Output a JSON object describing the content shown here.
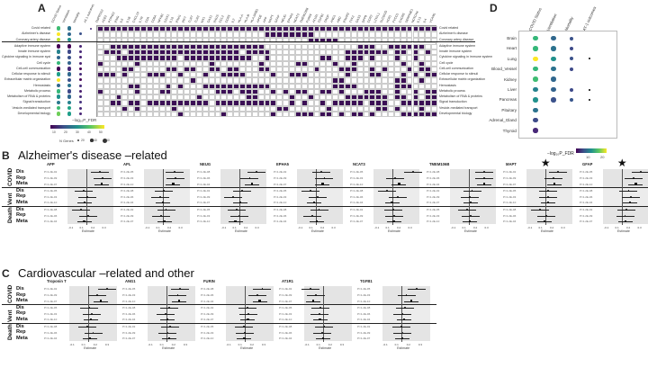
{
  "panelA": {
    "letter": "A",
    "dot_columns": [
      "COVID Status",
      "Ventilation",
      "Mortality",
      "AT-1 outcomes"
    ],
    "gene_columns": [
      "TMPRSS2",
      "ACE2",
      "PTPN22",
      "IFNG",
      "IL6",
      "IL1B",
      "CXCL10",
      "IL7R",
      "CD4",
      "CD8A",
      "NFKB1",
      "STAT1",
      "IL10",
      "IFNA1",
      "IRF7",
      "TLR7",
      "TLR3",
      "MX1",
      "OAS1",
      "ISG15",
      "CCL2",
      "CCR5",
      "IL2",
      "HLA-A",
      "HLA-B",
      "HLA-DRB1",
      "APOE",
      "APP",
      "MAPT",
      "GFAP",
      "NEUG",
      "EPHA5",
      "NCAT3",
      "TMEM106B",
      "FURIN",
      "AT1R1",
      "TGFB1",
      "TROP",
      "ANG1",
      "ABO",
      "IFNAR2",
      "TYK2",
      "OAS3",
      "DPP9",
      "CCR2",
      "LZTFL1",
      "SLC6A20",
      "XCR1",
      "FYCO1",
      "CXCR6",
      "SERPINE1",
      "NOTCH4",
      "IL13",
      "IL4",
      "VCAM1"
    ],
    "rows": [
      "Covid related",
      "Alzheimer's disease",
      "Coronary artery disease",
      "Adaptive immune system",
      "Innate immune system",
      "Cytokine signaling in immune system",
      "Cell cycle",
      "Cell-cell communication",
      "Cellular response to stimuli",
      "Extracellular matrix organization",
      "Hemostasis",
      "Metabolic process",
      "Metabolism of RNA & proteins",
      "Signal transduction",
      "Vesicle-mediated transport",
      "Developmental biology"
    ],
    "grid_pattern": [
      "1111111111111111111111111111111111111111111111111111111",
      "0000000000000000000000000001111111100000000000000000000",
      "0000000000000000000000000000000000111110000000000000000",
      "0011111111111111111111111110000000000000001110011111100",
      "0111011111111111111111101111000000000000111111101101010",
      "0001111111111011111111111001000000001100111010001001000",
      "1000001000000000001000000010000011000010010000000100100",
      "0000110000011011001101100011000000010001110010100010110",
      "1110100011100100010011110000100111000000100011000101011",
      "0000000000000001000000000000000000000011000000001100100",
      "0000011000010100011111111111000000000011110000001110000",
      "1000001000110000000111011100101011001101000111001001011",
      "0001000000000000100000001100000100100000111111101101011",
      "0011011011111111110111111111100101001011111011100111111",
      "0000101000001000000000000000011000000100000001101000100",
      "0000000000000100000010000000100011101101011010000111111"
    ],
    "dot_colors": [
      [
        "#3fbc73",
        "#2c728e",
        "",
        "#472c7a"
      ],
      [
        "#fde725",
        "#31688e",
        "#3b528b",
        ""
      ],
      [
        "#b5de2b",
        "#21918c",
        "",
        ""
      ],
      [
        "#440154",
        "#440154",
        "#482475",
        ""
      ],
      [
        "#26828e",
        "#3e4a89",
        "#482878",
        ""
      ],
      [
        "#31688e",
        "#3b528b",
        "#482173",
        ""
      ],
      [
        "#35b779",
        "#33638d",
        "#481f70",
        ""
      ],
      [
        "#440154",
        "#482878",
        "#440154",
        ""
      ],
      [
        "#1f9e89",
        "#31688e",
        "#472d7b",
        ""
      ],
      [
        "#fde725",
        "#3b528b",
        "#440154",
        ""
      ],
      [
        "#31688e",
        "#2c728e",
        "#472c7a",
        ""
      ],
      [
        "#35b779",
        "#3e4a89",
        "#481c6e",
        ""
      ],
      [
        "#21918c",
        "#31688e",
        "#472d7b",
        ""
      ],
      [
        "#2a788e",
        "#26828e",
        "#46327e",
        ""
      ],
      [
        "#3fbc73",
        "#20a486",
        "#472878",
        ""
      ],
      [
        "#6ece58",
        "#1f9e89",
        "#482475",
        ""
      ]
    ],
    "colorbar_title": "−log₁₀P_FDR",
    "colorbar_ticks": [
      "10",
      "20",
      "30",
      "40",
      "50"
    ],
    "size_title": "N Genes",
    "size_ticks": [
      "20",
      "40",
      "60"
    ]
  },
  "panelD": {
    "letter": "D",
    "columns": [
      "COVID Status",
      "Ventilation",
      "Mortality",
      "AT-1 outcomes"
    ],
    "rows": [
      "Brain",
      "Heart",
      "Lung",
      "Blood_Vessel",
      "Kidney",
      "Liver",
      "Pancreas",
      "Pituitary",
      "Adrenal_Gland",
      "Thyroid"
    ],
    "dot_colors": [
      [
        "#35b779",
        "#31688e",
        "#3b528b",
        ""
      ],
      [
        "#35b779",
        "#2c728e",
        "#3e4a89",
        ""
      ],
      [
        "#fde725",
        "#21918c",
        "#3b528b",
        "#000000"
      ],
      [
        "#35b779",
        "#2c728e",
        "#3e4a89",
        ""
      ],
      [
        "#3fbc73",
        "#31688e",
        "",
        ""
      ],
      [
        "#26828e",
        "#33638d",
        "#3e4a89",
        "#000000"
      ],
      [
        "#21918c",
        "#3b528b",
        "#39568c",
        "#000000"
      ],
      [
        "#2c728e",
        "",
        "",
        ""
      ],
      [
        "#3e4a89",
        "",
        "",
        ""
      ],
      [
        "#482878",
        "",
        "",
        ""
      ]
    ],
    "colorbar_title": "−log₁₀P_FDR",
    "colorbar_ticks": [
      "10",
      "20"
    ]
  },
  "panelB": {
    "letter": "B",
    "title": "Alzheimer's disease –related",
    "genes": [
      "APP",
      "APL",
      "NEUG",
      "EPHA5",
      "NCAT3",
      "TMEM106B",
      "MAPT",
      "GFAP"
    ],
    "starred": [
      false,
      false,
      false,
      false,
      false,
      false,
      true,
      true
    ],
    "groups": [
      {
        "name": "COVID",
        "rows": [
          "Dis",
          "Rep",
          "Meta"
        ]
      },
      {
        "name": "Vent",
        "rows": [
          "Dis",
          "Rep",
          "Meta"
        ]
      },
      {
        "name": "Death",
        "rows": [
          "Dis",
          "Rep",
          "Meta"
        ]
      }
    ],
    "xlabel": "Estimate",
    "star_symbol": "★",
    "estimates": [
      [
        0.24,
        0.28,
        0.26,
        -0.04,
        0.02,
        -0.02,
        -0.08,
        0.04,
        -0.03
      ],
      [
        0.2,
        0.22,
        0.18,
        0.02,
        -0.04,
        0.01,
        0.06,
        -0.02,
        0.03
      ],
      [
        0.3,
        0.18,
        0.22,
        0.05,
        -0.1,
        0.02,
        -0.04,
        0.0,
        -0.06
      ],
      [
        0.1,
        0.15,
        0.12,
        -0.08,
        0.04,
        -0.02,
        0.06,
        -0.06,
        0.02
      ],
      [
        0.35,
        0.05,
        0.12,
        -0.08,
        0.1,
        0.0,
        0.02,
        0.04,
        0.03
      ],
      [
        0.26,
        0.26,
        0.26,
        0.06,
        0.02,
        0.04,
        -0.02,
        0.04,
        0.02
      ],
      [
        0.22,
        0.14,
        0.16,
        0.05,
        0.05,
        0.05,
        -0.08,
        0.02,
        -0.01
      ],
      [
        0.32,
        0.2,
        0.24,
        0.12,
        0.16,
        0.14,
        0.08,
        0.06,
        0.07
      ]
    ]
  },
  "panelC": {
    "letter": "C",
    "title": "Cardiovascular –related  and other",
    "genes": [
      "Troponin T",
      "ANG1",
      "FURIN",
      "AT1R1",
      "TGFB1"
    ],
    "groups": [
      {
        "name": "COVID",
        "rows": [
          "Dis",
          "Rep",
          "Meta"
        ]
      },
      {
        "name": "Vent",
        "rows": [
          "Dis",
          "Rep",
          "Meta"
        ]
      },
      {
        "name": "Death",
        "rows": [
          "Dis",
          "Rep",
          "Meta"
        ]
      }
    ],
    "xlabel": "Estimate",
    "estimates": [
      [
        0.3,
        0.14,
        0.2,
        0.02,
        0.06,
        0.04,
        -0.02,
        0.08,
        0.03
      ],
      [
        0.22,
        0.18,
        0.2,
        0.04,
        -0.02,
        0.01,
        0.06,
        0.02,
        0.04
      ],
      [
        0.28,
        0.2,
        0.24,
        0.04,
        0.06,
        0.05,
        -0.02,
        0.0,
        -0.01
      ],
      [
        -0.2,
        -0.12,
        -0.16,
        -0.04,
        -0.06,
        -0.05,
        0.02,
        -0.02,
        0.0
      ],
      [
        0.24,
        0.08,
        0.16,
        0.06,
        0.02,
        0.04,
        0.0,
        0.02,
        0.01
      ]
    ]
  }
}
